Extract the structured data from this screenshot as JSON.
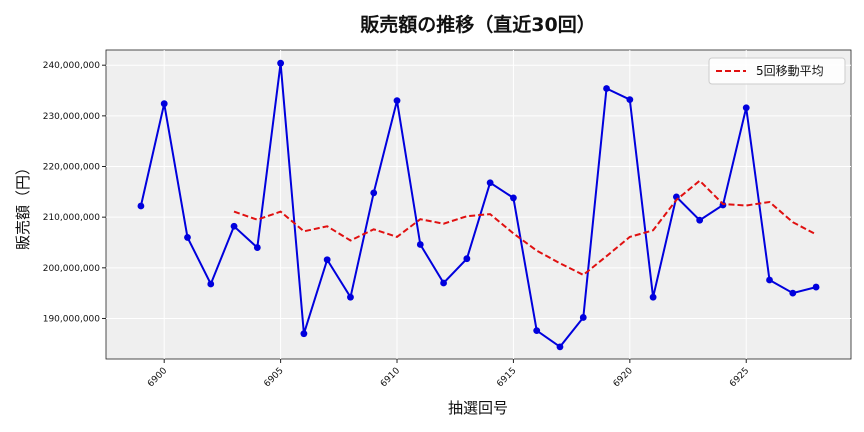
{
  "chart_data": {
    "type": "line",
    "title": "販売額の推移（直近30回）",
    "xlabel": "抽選回号",
    "ylabel": "販売額（円）",
    "xlim": [
      6897.5,
      6929.5
    ],
    "ylim": [
      182000000,
      243000000
    ],
    "xticks": [
      6900,
      6905,
      6910,
      6915,
      6920,
      6925
    ],
    "yticks": [
      190000000,
      200000000,
      210000000,
      220000000,
      230000000,
      240000000
    ],
    "ytick_labels": [
      "190,000,000",
      "200,000,000",
      "210,000,000",
      "220,000,000",
      "230,000,000",
      "240,000,000"
    ],
    "grid": true,
    "legend_position": "top-right",
    "x": [
      6899,
      6900,
      6901,
      6902,
      6903,
      6904,
      6905,
      6906,
      6907,
      6908,
      6909,
      6910,
      6911,
      6912,
      6913,
      6914,
      6915,
      6916,
      6917,
      6918,
      6919,
      6920,
      6921,
      6922,
      6923,
      6924,
      6925,
      6926,
      6927,
      6928
    ],
    "series": [
      {
        "name": "",
        "color": "#0000dd",
        "style": "solid-markers",
        "values": [
          212200000,
          232400000,
          206000000,
          196800000,
          208200000,
          204000000,
          240400000,
          187000000,
          201600000,
          194200000,
          214800000,
          233000000,
          204600000,
          197000000,
          201800000,
          216800000,
          213800000,
          187600000,
          184400000,
          190200000,
          235400000,
          233200000,
          194200000,
          214000000,
          209400000,
          212400000,
          231600000,
          197600000,
          195000000,
          196200000
        ]
      },
      {
        "name": "5回移動平均",
        "color": "#e01010",
        "style": "dashed",
        "values": [
          null,
          null,
          null,
          null,
          211100000,
          209500000,
          211100000,
          207200000,
          208200000,
          205400000,
          207600000,
          206100000,
          209600000,
          208700000,
          210200000,
          210600000,
          206800000,
          203400000,
          200900000,
          198600000,
          202300000,
          206100000,
          207400000,
          213400000,
          217200000,
          212600000,
          212300000,
          213000000,
          209000000,
          206600000
        ]
      }
    ]
  }
}
